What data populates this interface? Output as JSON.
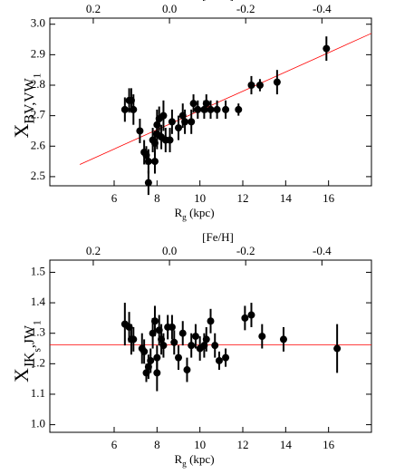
{
  "chart_data": [
    {
      "type": "scatter",
      "xlabel": [
        {
          "text": "R",
          "sub": 0
        },
        {
          "text": "g",
          "sub": 1
        },
        {
          "text": " (kpc)",
          "sub": 0
        }
      ],
      "ylabel": [
        {
          "text": "X",
          "sub": 0
        },
        {
          "text": "BV,VW",
          "sub": 1
        },
        {
          "text": "1",
          "sub": 2
        }
      ],
      "x2label": "[Fe/H]",
      "xlim": [
        3,
        18
      ],
      "xticks": [
        6,
        8,
        10,
        12,
        14,
        16
      ],
      "x2lim": [
        0.314,
        -0.53
      ],
      "x2ticks": [
        0.2,
        {
          "value": 0,
          "label": "0.0"
        },
        -0.2,
        -0.4
      ],
      "ylim": [
        2.47,
        3.02
      ],
      "yticks": [
        2.5,
        2.6,
        2.7,
        2.8,
        2.9,
        {
          "value": 3,
          "label": "3.0"
        }
      ],
      "color": "#000000",
      "x": [
        6.5,
        6.7,
        6.8,
        6.9,
        7.2,
        7.4,
        7.5,
        7.6,
        7.6,
        7.8,
        7.9,
        7.9,
        8.0,
        8.0,
        8.1,
        8.2,
        8.3,
        8.4,
        8.6,
        8.7,
        9.0,
        9.2,
        9.3,
        9.6,
        9.7,
        9.9,
        10.2,
        10.3,
        10.5,
        10.8,
        11.2,
        11.8,
        12.4,
        12.8,
        13.6,
        15.9
      ],
      "y": [
        2.72,
        2.75,
        2.75,
        2.72,
        2.65,
        2.58,
        2.57,
        2.55,
        2.48,
        2.62,
        2.55,
        2.61,
        2.64,
        2.67,
        2.69,
        2.63,
        2.7,
        2.62,
        2.62,
        2.68,
        2.66,
        2.7,
        2.68,
        2.68,
        2.74,
        2.72,
        2.72,
        2.74,
        2.72,
        2.72,
        2.72,
        2.72,
        2.8,
        2.8,
        2.81,
        2.92
      ],
      "yerr": [
        0.04,
        0.04,
        0.04,
        0.05,
        0.04,
        0.04,
        0.03,
        0.04,
        0.04,
        0.04,
        0.04,
        0.04,
        0.05,
        0.05,
        0.04,
        0.04,
        0.05,
        0.04,
        0.04,
        0.04,
        0.04,
        0.04,
        0.04,
        0.04,
        0.03,
        0.03,
        0.03,
        0.03,
        0.03,
        0.03,
        0.03,
        0.02,
        0.03,
        0.02,
        0.04,
        0.04
      ],
      "fit": {
        "x": [
          4.4,
          18
        ],
        "y": [
          2.54,
          2.97
        ],
        "color": "#ff0000"
      }
    },
    {
      "type": "scatter",
      "xlabel": [
        {
          "text": "R",
          "sub": 0
        },
        {
          "text": "g",
          "sub": 1
        },
        {
          "text": " (kpc)",
          "sub": 0
        }
      ],
      "ylabel": [
        {
          "text": "X",
          "sub": 0
        },
        {
          "text": "JK",
          "sub": 1
        },
        {
          "text": "s",
          "sub": 2
        },
        {
          "text": ",JW",
          "sub": 1
        },
        {
          "text": "1",
          "sub": 2
        }
      ],
      "x2label": "[Fe/H]",
      "xlim": [
        3,
        18
      ],
      "xticks": [
        6,
        8,
        10,
        12,
        14,
        16
      ],
      "x2lim": [
        0.314,
        -0.53
      ],
      "x2ticks": [
        0.2,
        {
          "value": 0,
          "label": "0.0"
        },
        -0.2,
        -0.4
      ],
      "ylim": [
        0.975,
        1.54
      ],
      "yticks": [
        {
          "value": 1,
          "label": "1.0"
        },
        1.1,
        1.2,
        1.3,
        1.4,
        1.5
      ],
      "color": "#000000",
      "x": [
        6.5,
        6.7,
        6.8,
        6.9,
        7.3,
        7.4,
        7.5,
        7.6,
        7.7,
        7.8,
        7.9,
        8.0,
        8.0,
        8.1,
        8.2,
        8.3,
        8.5,
        8.7,
        8.8,
        9.0,
        9.2,
        9.4,
        9.6,
        9.8,
        10.0,
        10.2,
        10.3,
        10.5,
        10.7,
        10.9,
        11.2,
        12.1,
        12.4,
        12.9,
        13.9,
        16.4
      ],
      "y": [
        1.33,
        1.32,
        1.28,
        1.28,
        1.25,
        1.24,
        1.17,
        1.19,
        1.21,
        1.3,
        1.34,
        1.22,
        1.17,
        1.31,
        1.28,
        1.26,
        1.32,
        1.32,
        1.27,
        1.22,
        1.3,
        1.18,
        1.26,
        1.29,
        1.25,
        1.26,
        1.28,
        1.34,
        1.26,
        1.21,
        1.22,
        1.35,
        1.36,
        1.29,
        1.28,
        1.25
      ],
      "yerr": [
        0.07,
        0.05,
        0.05,
        0.04,
        0.05,
        0.04,
        0.03,
        0.04,
        0.04,
        0.05,
        0.05,
        0.04,
        0.06,
        0.05,
        0.05,
        0.04,
        0.04,
        0.04,
        0.04,
        0.04,
        0.04,
        0.04,
        0.04,
        0.04,
        0.04,
        0.04,
        0.04,
        0.04,
        0.04,
        0.03,
        0.03,
        0.04,
        0.04,
        0.04,
        0.04,
        0.08
      ],
      "fit": {
        "x": [
          3,
          18
        ],
        "y": [
          1.262,
          1.262
        ],
        "color": "#ff0000"
      }
    }
  ]
}
